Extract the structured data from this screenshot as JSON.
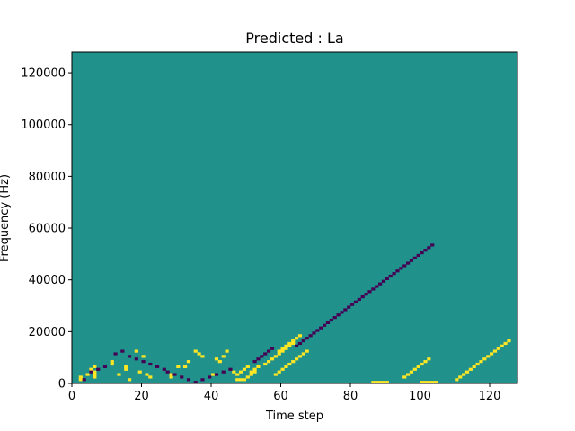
{
  "chart_data": {
    "type": "heatmap",
    "title": "Predicted : La",
    "xlabel": "Time step",
    "ylabel": "Frequency (Hz)",
    "xlim": [
      0,
      128
    ],
    "ylim": [
      0,
      128000
    ],
    "xticks": [
      0,
      20,
      40,
      60,
      80,
      100,
      120
    ],
    "yticks": [
      0,
      20000,
      40000,
      60000,
      80000,
      100000,
      120000
    ],
    "xtick_labels": [
      "0",
      "20",
      "40",
      "60",
      "80",
      "100",
      "120"
    ],
    "ytick_labels": [
      "0",
      "20000",
      "40000",
      "60000",
      "80000",
      "100000",
      "120000"
    ],
    "colormap": "viridis",
    "value_levels": [
      -1,
      0,
      1
    ],
    "colors": {
      "low": "#440154",
      "mid": "#21918c",
      "high": "#fde725"
    },
    "grid": false,
    "background_value": 0,
    "high_cells": [
      [
        2,
        1
      ],
      [
        2,
        2
      ],
      [
        4,
        3
      ],
      [
        5,
        5
      ],
      [
        6,
        2
      ],
      [
        6,
        3
      ],
      [
        6,
        4
      ],
      [
        6,
        6
      ],
      [
        11,
        7
      ],
      [
        11,
        8
      ],
      [
        13,
        3
      ],
      [
        15,
        5
      ],
      [
        15,
        6
      ],
      [
        16,
        1
      ],
      [
        18,
        12
      ],
      [
        19,
        4
      ],
      [
        20,
        10
      ],
      [
        21,
        3
      ],
      [
        22,
        2
      ],
      [
        28,
        2
      ],
      [
        28,
        3
      ],
      [
        30,
        6
      ],
      [
        32,
        6
      ],
      [
        33,
        8
      ],
      [
        35,
        12
      ],
      [
        36,
        11
      ],
      [
        37,
        10
      ],
      [
        40,
        3
      ],
      [
        41,
        9
      ],
      [
        42,
        8
      ],
      [
        43,
        10
      ],
      [
        44,
        12
      ],
      [
        46,
        4
      ],
      [
        47,
        3
      ],
      [
        48,
        4
      ],
      [
        49,
        5
      ],
      [
        50,
        6
      ],
      [
        47,
        1
      ],
      [
        48,
        1
      ],
      [
        49,
        1
      ],
      [
        50,
        2
      ],
      [
        51,
        3
      ],
      [
        52,
        4
      ],
      [
        51,
        4
      ],
      [
        52,
        5
      ],
      [
        53,
        6
      ],
      [
        55,
        7
      ],
      [
        56,
        8
      ],
      [
        57,
        9
      ],
      [
        58,
        10
      ],
      [
        59,
        11
      ],
      [
        60,
        12
      ],
      [
        61,
        13
      ],
      [
        62,
        14
      ],
      [
        63,
        15
      ],
      [
        58,
        3
      ],
      [
        59,
        4
      ],
      [
        60,
        5
      ],
      [
        61,
        6
      ],
      [
        62,
        7
      ],
      [
        63,
        8
      ],
      [
        64,
        9
      ],
      [
        65,
        10
      ],
      [
        66,
        11
      ],
      [
        67,
        12
      ],
      [
        59,
        12
      ],
      [
        60,
        13
      ],
      [
        61,
        14
      ],
      [
        62,
        15
      ],
      [
        63,
        16
      ],
      [
        64,
        17
      ],
      [
        65,
        18
      ],
      [
        86,
        0
      ],
      [
        87,
        0
      ],
      [
        88,
        0
      ],
      [
        89,
        0
      ],
      [
        90,
        0
      ],
      [
        100,
        0
      ],
      [
        101,
        0
      ],
      [
        102,
        0
      ],
      [
        103,
        0
      ],
      [
        104,
        0
      ],
      [
        95,
        2
      ],
      [
        96,
        3
      ],
      [
        97,
        4
      ],
      [
        98,
        5
      ],
      [
        99,
        6
      ],
      [
        100,
        7
      ],
      [
        101,
        8
      ],
      [
        102,
        9
      ],
      [
        110,
        1
      ],
      [
        111,
        2
      ],
      [
        112,
        3
      ],
      [
        113,
        4
      ],
      [
        114,
        5
      ],
      [
        115,
        6
      ],
      [
        116,
        7
      ],
      [
        117,
        8
      ],
      [
        118,
        9
      ],
      [
        119,
        10
      ],
      [
        120,
        11
      ],
      [
        121,
        12
      ],
      [
        122,
        13
      ],
      [
        123,
        14
      ],
      [
        124,
        15
      ],
      [
        125,
        16
      ]
    ],
    "low_cells": [
      [
        3,
        1
      ],
      [
        5,
        4
      ],
      [
        7,
        5
      ],
      [
        9,
        6
      ],
      [
        12,
        11
      ],
      [
        14,
        12
      ],
      [
        16,
        10
      ],
      [
        18,
        9
      ],
      [
        20,
        8
      ],
      [
        22,
        7
      ],
      [
        24,
        6
      ],
      [
        26,
        5
      ],
      [
        27,
        4
      ],
      [
        29,
        3
      ],
      [
        31,
        2
      ],
      [
        33,
        1
      ],
      [
        35,
        0
      ],
      [
        37,
        1
      ],
      [
        39,
        2
      ],
      [
        41,
        3
      ],
      [
        43,
        4
      ],
      [
        45,
        5
      ],
      [
        52,
        8
      ],
      [
        53,
        9
      ],
      [
        54,
        10
      ],
      [
        55,
        11
      ],
      [
        56,
        12
      ],
      [
        57,
        13
      ],
      [
        64,
        14
      ],
      [
        65,
        15
      ],
      [
        66,
        16
      ],
      [
        67,
        17
      ],
      [
        68,
        18
      ],
      [
        69,
        19
      ],
      [
        70,
        20
      ],
      [
        71,
        21
      ],
      [
        72,
        22
      ],
      [
        73,
        23
      ],
      [
        74,
        24
      ],
      [
        75,
        25
      ],
      [
        76,
        26
      ],
      [
        77,
        27
      ],
      [
        78,
        28
      ],
      [
        79,
        29
      ],
      [
        80,
        30
      ],
      [
        81,
        31
      ],
      [
        82,
        32
      ],
      [
        83,
        33
      ],
      [
        84,
        34
      ],
      [
        85,
        35
      ],
      [
        86,
        36
      ],
      [
        87,
        37
      ],
      [
        88,
        38
      ],
      [
        89,
        39
      ],
      [
        90,
        40
      ],
      [
        91,
        41
      ],
      [
        92,
        42
      ],
      [
        93,
        43
      ],
      [
        94,
        44
      ],
      [
        95,
        45
      ],
      [
        96,
        46
      ],
      [
        97,
        47
      ],
      [
        98,
        48
      ],
      [
        99,
        49
      ],
      [
        100,
        50
      ],
      [
        101,
        51
      ],
      [
        102,
        52
      ],
      [
        103,
        53
      ]
    ]
  }
}
